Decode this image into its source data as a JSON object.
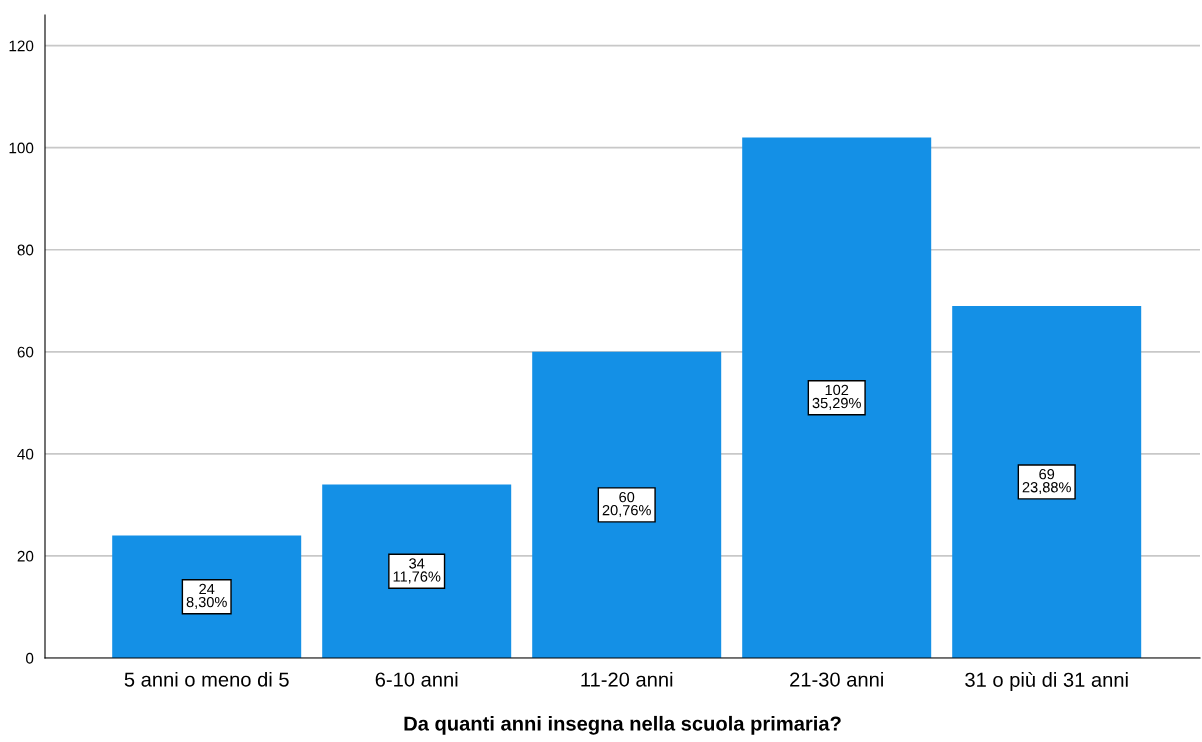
{
  "chart_data": {
    "type": "bar",
    "xlabel": "Da quanti anni insegna nella scuola primaria?",
    "categories": [
      "5 anni o meno di 5",
      "6-10 anni",
      "11-20 anni",
      "21-30 anni",
      "31 o più di 31 anni"
    ],
    "values": [
      24,
      34,
      60,
      102,
      69
    ],
    "value_labels": [
      "24\n8,30%",
      "34\n11,76%",
      "60\n20,76%",
      "102\n35,29%",
      "69\n23,88%"
    ],
    "color": "#1490e6",
    "ylim": [
      0,
      126
    ],
    "yticks": [
      0,
      20,
      40,
      60,
      80,
      100,
      120
    ],
    "grid": "y"
  }
}
